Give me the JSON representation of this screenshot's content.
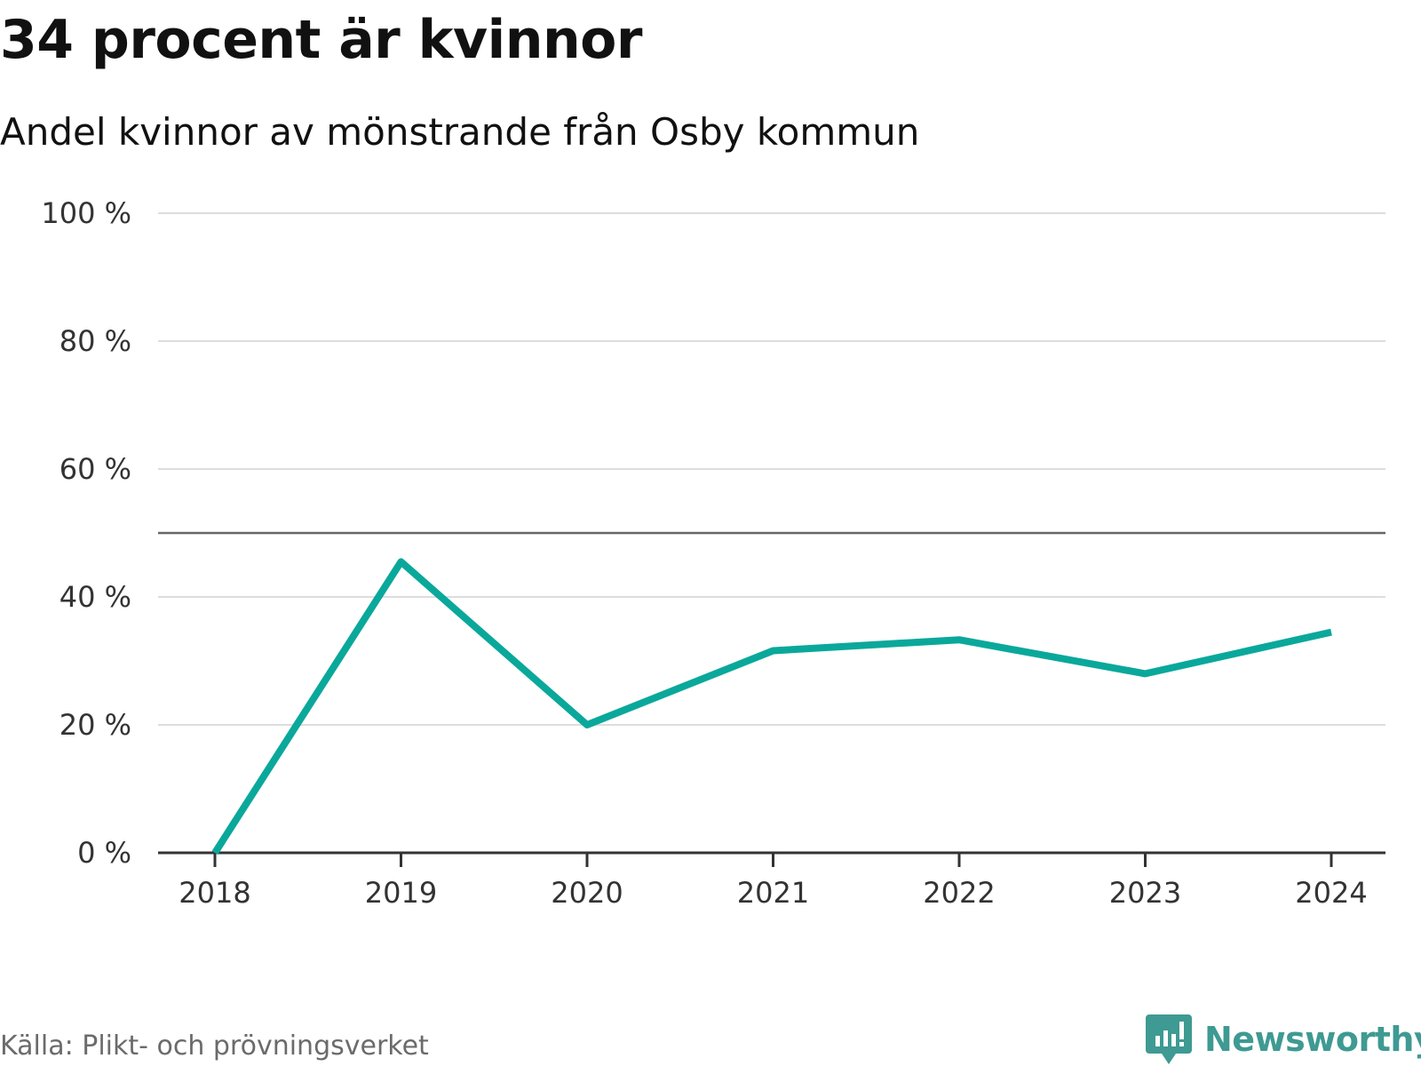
{
  "title": "34 procent är kvinnor",
  "subtitle": "Andel kvinnor av mönstrande från Osby kommun",
  "source": "Källa: Plikt- och prövningsverket",
  "brand": {
    "name": "Newsworthy",
    "icon": "newsworthy-chart-icon",
    "color": "#3e9a92"
  },
  "chart_data": {
    "type": "line",
    "x": [
      "2018",
      "2019",
      "2020",
      "2021",
      "2022",
      "2023",
      "2024"
    ],
    "series": [
      {
        "values": [
          0,
          45.5,
          20,
          31.6,
          33.3,
          28,
          34.5
        ],
        "color": "#0aa89b"
      }
    ],
    "ylim": [
      0,
      100
    ],
    "yticks": [
      0,
      20,
      40,
      60,
      80,
      100
    ],
    "ytick_labels": [
      "0 %",
      "20 %",
      "40 %",
      "60 %",
      "80 %",
      "100 %"
    ],
    "reference_line": 50,
    "grid": true
  }
}
